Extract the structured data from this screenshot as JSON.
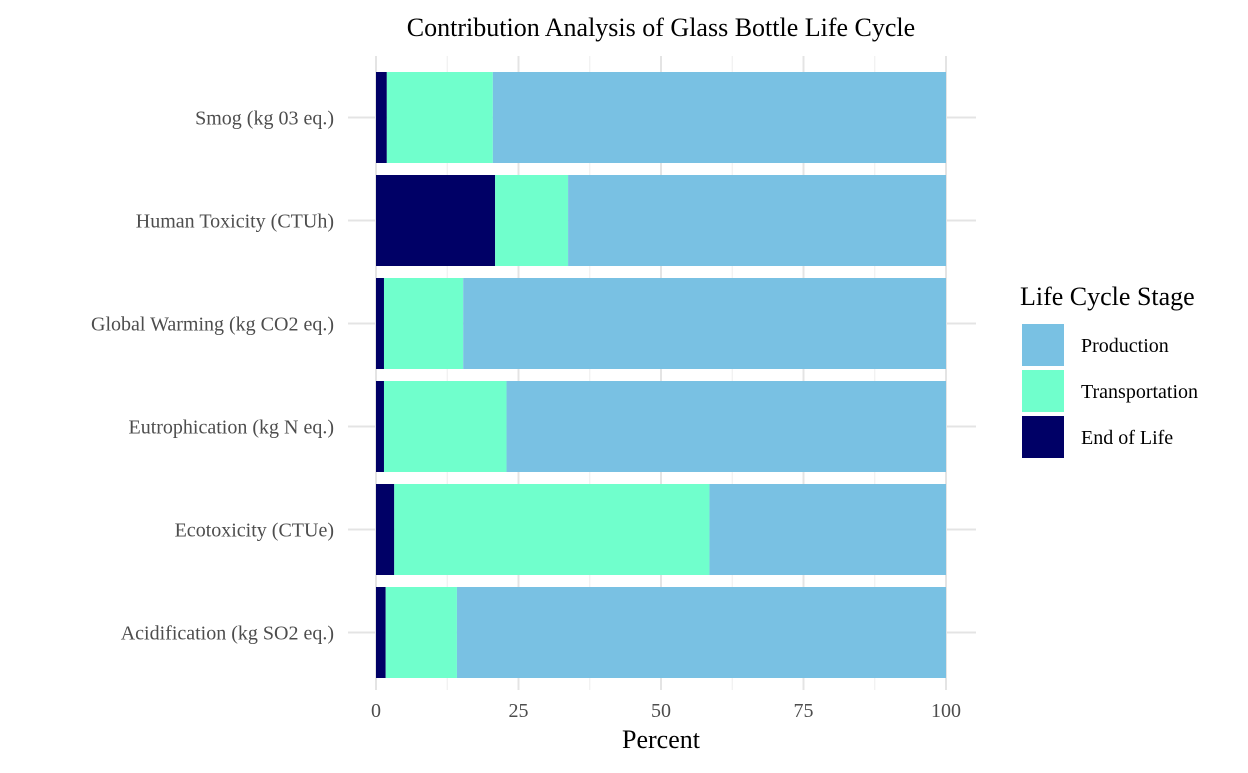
{
  "chart_data": {
    "type": "bar",
    "orientation": "horizontal",
    "stacked": true,
    "title": "Contribution Analysis of Glass Bottle Life Cycle",
    "xlabel": "Percent",
    "ylabel": "",
    "xlim": [
      0,
      100
    ],
    "x_ticks": [
      0,
      25,
      50,
      75,
      100
    ],
    "grid": true,
    "legend_position": "right",
    "legend_title": "Life Cycle Stage",
    "categories": [
      "Smog (kg 03 eq.)",
      "Human Toxicity (CTUh)",
      "Global Warming (kg CO2 eq.)",
      "Eutrophication (kg N eq.)",
      "Ecotoxicity (CTUe)",
      "Acidification (kg SO2 eq.)"
    ],
    "series": [
      {
        "name": "End of Life",
        "color": "#000066",
        "values": [
          1.9,
          20.9,
          1.4,
          1.4,
          3.2,
          1.7
        ]
      },
      {
        "name": "Transportation",
        "color": "#70FFCC",
        "values": [
          18.6,
          12.8,
          13.9,
          21.5,
          55.3,
          12.5
        ]
      },
      {
        "name": "Production",
        "color": "#79C1E3",
        "values": [
          79.5,
          66.3,
          84.7,
          77.1,
          41.5,
          85.8
        ]
      }
    ],
    "legend_order": [
      "Production",
      "Transportation",
      "End of Life"
    ]
  }
}
